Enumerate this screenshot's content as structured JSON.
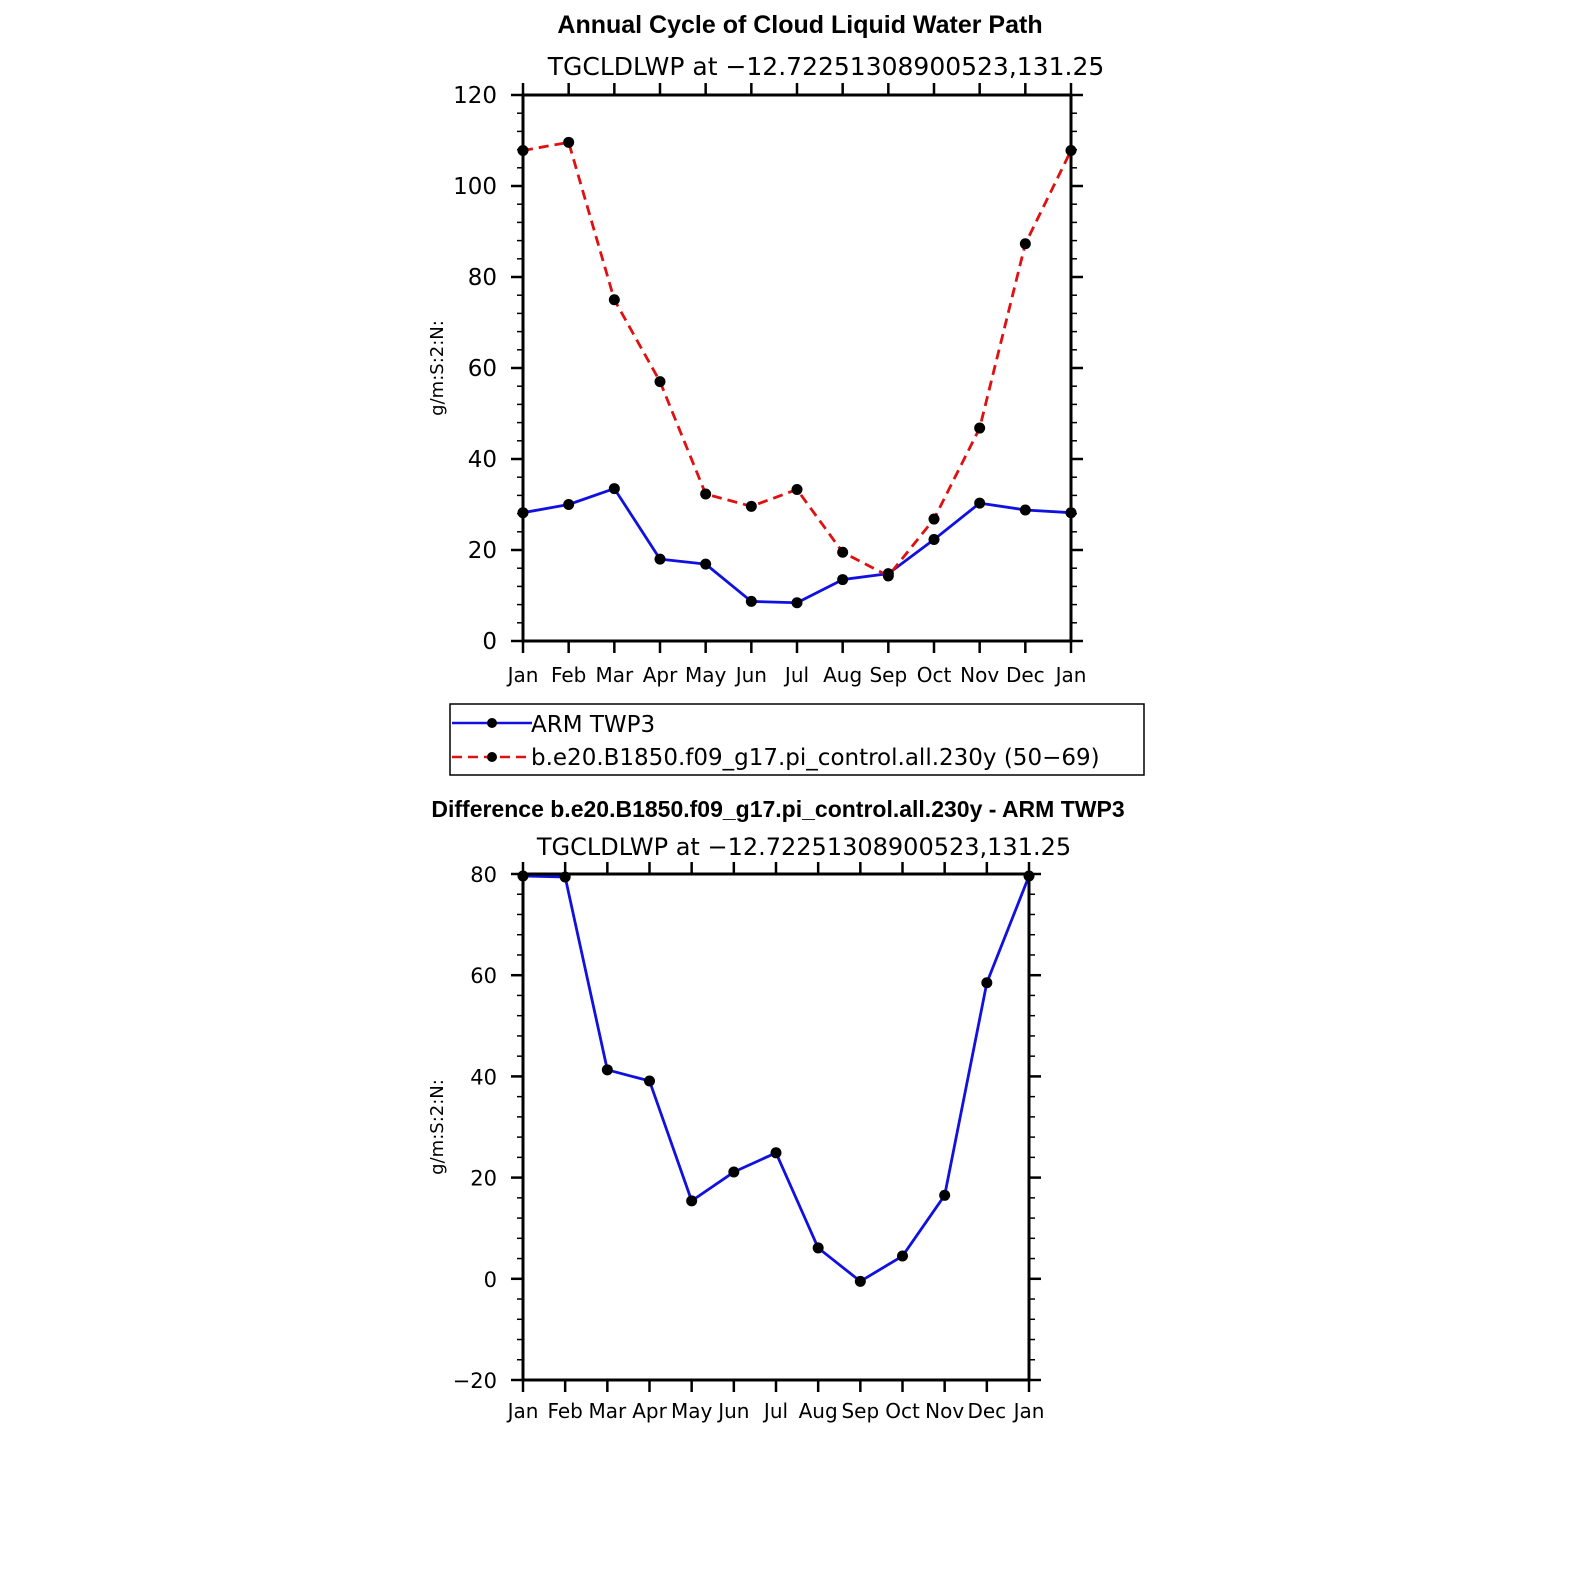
{
  "chart_data": [
    {
      "type": "line",
      "title": "Annual Cycle of Cloud Liquid Water Path",
      "subtitle": "TGCLDLWP at −12.72251308900523,131.25",
      "xlabel": "",
      "ylabel": "g/m:S:2:N:",
      "ylim": [
        0,
        120
      ],
      "yticks": [
        "0",
        "20",
        "40",
        "60",
        "80",
        "100",
        "120"
      ],
      "yticks_values": [
        0,
        20,
        40,
        60,
        80,
        100,
        120
      ],
      "categories": [
        "Jan",
        "Feb",
        "Mar",
        "Apr",
        "May",
        "Jun",
        "Jul",
        "Aug",
        "Sep",
        "Oct",
        "Nov",
        "Dec",
        "Jan"
      ],
      "grid": false,
      "legend_position": "bottom",
      "series": [
        {
          "name": "ARM TWP3",
          "color": "#1010e0",
          "dash": "solid",
          "values": [
            28.2,
            30.0,
            33.5,
            18.0,
            16.9,
            8.7,
            8.4,
            13.5,
            14.8,
            22.3,
            30.3,
            28.8,
            28.2
          ]
        },
        {
          "name": "b.e20.B1850.f09_g17.pi_control.all.230y (50−69)",
          "color": "#e01010",
          "dash": "dashed",
          "values": [
            107.8,
            109.6,
            75.0,
            57.0,
            32.3,
            29.6,
            33.3,
            19.5,
            14.3,
            26.8,
            46.8,
            87.3,
            107.8
          ]
        }
      ]
    },
    {
      "type": "line",
      "title": "Difference b.e20.B1850.f09_g17.pi_control.all.230y - ARM TWP3",
      "subtitle": "TGCLDLWP at −12.72251308900523,131.25",
      "xlabel": "",
      "ylabel": "g/m:S:2:N:",
      "ylim": [
        -20,
        80
      ],
      "yticks": [
        "−20",
        "0",
        "20",
        "40",
        "60",
        "80"
      ],
      "yticks_values": [
        -20,
        0,
        20,
        40,
        60,
        80
      ],
      "categories": [
        "Jan",
        "Feb",
        "Mar",
        "Apr",
        "May",
        "Jun",
        "Jul",
        "Aug",
        "Sep",
        "Oct",
        "Nov",
        "Dec",
        "Jan"
      ],
      "grid": false,
      "series": [
        {
          "name": "Difference",
          "color": "#1010e0",
          "dash": "solid",
          "values": [
            79.6,
            79.4,
            41.3,
            39.1,
            15.4,
            21.1,
            24.9,
            6.1,
            -0.5,
            4.5,
            16.5,
            58.5,
            79.6
          ]
        }
      ]
    }
  ]
}
